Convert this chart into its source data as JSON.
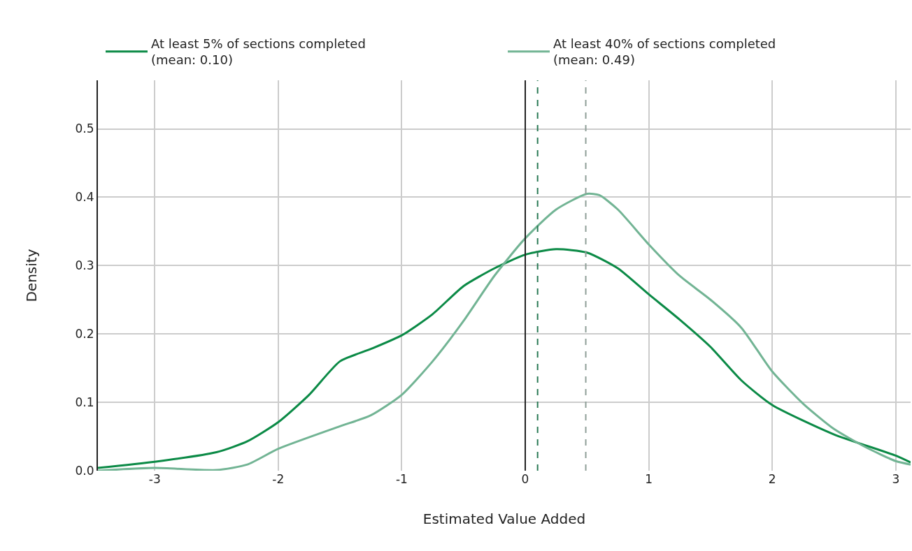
{
  "chart_data": {
    "type": "line",
    "xlabel": "Estimated Value Added",
    "ylabel": "Density",
    "x": [
      -3.46,
      -3,
      -2.5,
      -2.25,
      -2,
      -1.75,
      -1.5,
      -1.25,
      -1,
      -0.75,
      -0.5,
      -0.25,
      0,
      0.25,
      0.5,
      0.75,
      1,
      1.25,
      1.5,
      1.75,
      2,
      2.5,
      3,
      3.12
    ],
    "series": [
      {
        "name": "At least 5% of sections completed\n(mean: 0.10)",
        "color": "#0b8a46",
        "values": [
          0.004,
          0.013,
          0.027,
          0.043,
          0.071,
          0.111,
          0.16,
          0.178,
          0.198,
          0.229,
          0.27,
          0.296,
          0.316,
          0.324,
          0.319,
          0.296,
          0.258,
          0.221,
          0.181,
          0.132,
          0.096,
          0.053,
          0.022,
          0.012
        ]
      },
      {
        "name": "At least 40% of sections completed\n(mean: 0.49)",
        "color": "#72b494",
        "x": [
          -3.46,
          -3,
          -2.5,
          -2.25,
          -2,
          -1.5,
          -1.25,
          -1,
          -0.75,
          -0.5,
          -0.25,
          0,
          0.25,
          0.5,
          0.6,
          0.75,
          1,
          1.25,
          1.5,
          1.75,
          2,
          2.25,
          2.5,
          2.75,
          3,
          3.12
        ],
        "values": [
          0.0,
          0.004,
          0.001,
          0.009,
          0.032,
          0.065,
          0.081,
          0.111,
          0.16,
          0.219,
          0.285,
          0.34,
          0.382,
          0.405,
          0.403,
          0.382,
          0.331,
          0.285,
          0.25,
          0.209,
          0.145,
          0.098,
          0.061,
          0.035,
          0.014,
          0.009
        ]
      }
    ],
    "ref_lines": [
      {
        "axis": "x",
        "value": 0,
        "color": "#222222",
        "line_style": "solid"
      },
      {
        "axis": "x",
        "value": 0.1,
        "color": "#2a7a55",
        "line_style": "dashed"
      },
      {
        "axis": "x",
        "value": 0.49,
        "color": "#8f9f98",
        "line_style": "dashed"
      }
    ],
    "xlim": [
      -3.46,
      3.12
    ],
    "xticks": [
      -3,
      -2,
      -1,
      0,
      1,
      2,
      3
    ],
    "ylim": [
      0,
      0.571
    ],
    "yticks": [
      {
        "value": 0,
        "label": "0.0"
      },
      0.1,
      0.2,
      0.3,
      0.4,
      0.5
    ],
    "grid": true,
    "legend": "top",
    "line_style": "solid",
    "marker": "none"
  }
}
